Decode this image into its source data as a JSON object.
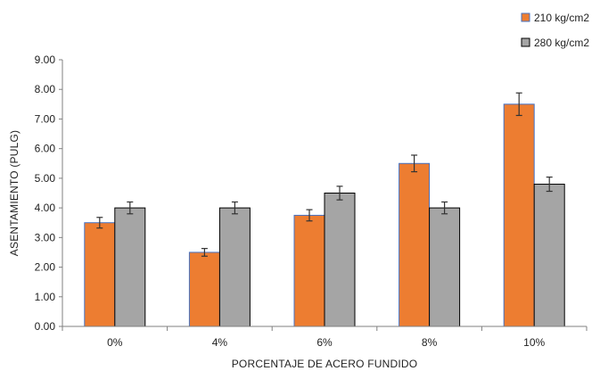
{
  "chart_data": {
    "type": "bar",
    "categories": [
      "0%",
      "4%",
      "6%",
      "8%",
      "10%"
    ],
    "series": [
      {
        "name": "210 kg/cm2",
        "color": "#ED7D31",
        "values": [
          3.5,
          2.5,
          3.75,
          5.5,
          7.5
        ],
        "error": [
          0.18,
          0.13,
          0.19,
          0.28,
          0.38
        ]
      },
      {
        "name": "280 kg/cm2",
        "color": "#A5A5A5",
        "values": [
          4.0,
          4.0,
          4.5,
          4.0,
          4.8
        ],
        "error": [
          0.2,
          0.2,
          0.23,
          0.2,
          0.24
        ]
      }
    ],
    "y_ticks": [
      "0.00",
      "1.00",
      "2.00",
      "3.00",
      "4.00",
      "5.00",
      "6.00",
      "7.00",
      "8.00",
      "9.00"
    ],
    "ylim": [
      0,
      9
    ],
    "xlabel": "PORCENTAJE DE ACERO FUNDIDO",
    "ylabel": "ASENTAMIENTO (PULG)",
    "legend_position": "top-right",
    "grid": false,
    "error_bars": true
  }
}
